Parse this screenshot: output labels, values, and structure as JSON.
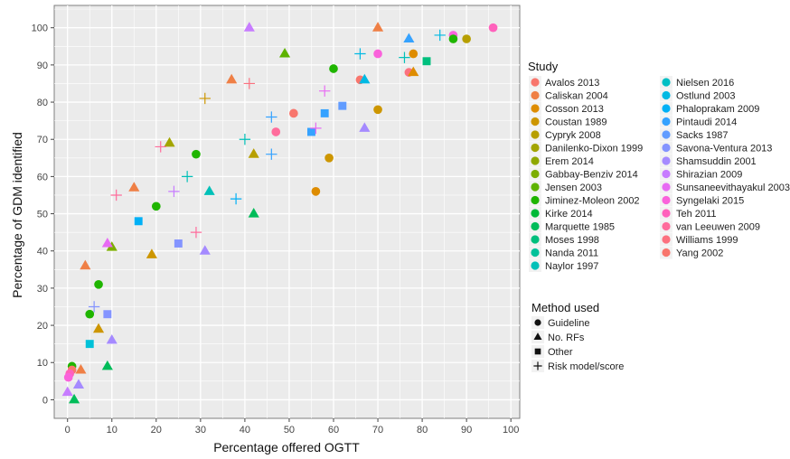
{
  "chart_data": {
    "type": "scatter",
    "title": "",
    "xlabel": "Percentage offered OGTT",
    "ylabel": "Percentage of GDM identified",
    "xlim": [
      -3,
      102
    ],
    "ylim": [
      -5,
      106
    ],
    "xticks": [
      0,
      10,
      20,
      30,
      40,
      50,
      60,
      70,
      80,
      90,
      100
    ],
    "yticks": [
      0,
      10,
      20,
      30,
      40,
      50,
      60,
      70,
      80,
      90,
      100
    ],
    "grid": true,
    "panel_background": "#ebebeb",
    "grid_color": "#ffffff",
    "legend_placement": "right",
    "legend_study_title": "Study",
    "legend_method_title": "Method used",
    "studies": [
      {
        "name": "Avalos 2013",
        "color": "#f8766d"
      },
      {
        "name": "Caliskan 2004",
        "color": "#ef7f45"
      },
      {
        "name": "Cosson 2013",
        "color": "#de8c00"
      },
      {
        "name": "Coustan 1989",
        "color": "#cd9600"
      },
      {
        "name": "Cypryk 2008",
        "color": "#b79f00"
      },
      {
        "name": "Danilenko-Dixon 1999",
        "color": "#a3a500"
      },
      {
        "name": "Erem 2014",
        "color": "#8fa800"
      },
      {
        "name": "Gabbay-Benziv 2014",
        "color": "#7cae00"
      },
      {
        "name": "Jensen 2003",
        "color": "#5eb300"
      },
      {
        "name": "Jiminez-Moleon 2002",
        "color": "#1fb500"
      },
      {
        "name": "Kirke 2014",
        "color": "#00ba38"
      },
      {
        "name": "Marquette 1985",
        "color": "#00bc59"
      },
      {
        "name": "Moses 1998",
        "color": "#00bf7d"
      },
      {
        "name": "Nanda 2011",
        "color": "#00c19a"
      },
      {
        "name": "Naylor 1997",
        "color": "#00c0b8"
      },
      {
        "name": "Nielsen 2016",
        "color": "#00bfc4"
      },
      {
        "name": "Ostlund 2003",
        "color": "#00b9e3"
      },
      {
        "name": "Phaloprakam 2009",
        "color": "#00b0f6"
      },
      {
        "name": "Pintaudi 2014",
        "color": "#35a2ff"
      },
      {
        "name": "Sacks 1987",
        "color": "#619cff"
      },
      {
        "name": "Savona-Ventura 2013",
        "color": "#8494ff"
      },
      {
        "name": "Shamsuddin 2001",
        "color": "#a58aff"
      },
      {
        "name": "Shirazian 2009",
        "color": "#c77cff"
      },
      {
        "name": "Sunsaneevithayakul 2003",
        "color": "#e76bf3"
      },
      {
        "name": "Syngelaki 2015",
        "color": "#fa62db"
      },
      {
        "name": "Teh 2011",
        "color": "#ff62bc"
      },
      {
        "name": "van Leeuwen 2009",
        "color": "#ff6c9c"
      },
      {
        "name": "Williams 1999",
        "color": "#fc717f"
      },
      {
        "name": "Yang 2002",
        "color": "#f8766d"
      }
    ],
    "methods": [
      {
        "name": "Guideline",
        "shape": "circle"
      },
      {
        "name": "No. RFs",
        "shape": "triangle"
      },
      {
        "name": "Other",
        "shape": "square"
      },
      {
        "name": "Risk model/score",
        "shape": "cross"
      }
    ],
    "points": [
      {
        "x": 87,
        "y": 98,
        "shape": "circle",
        "color": "#fa62db"
      },
      {
        "x": 96,
        "y": 100,
        "shape": "circle",
        "color": "#ff62bc"
      },
      {
        "x": 90,
        "y": 97,
        "shape": "circle",
        "color": "#b79f00"
      },
      {
        "x": 87,
        "y": 97,
        "shape": "circle",
        "color": "#1fb500"
      },
      {
        "x": 78,
        "y": 93,
        "shape": "circle",
        "color": "#de8c00"
      },
      {
        "x": 70,
        "y": 93,
        "shape": "circle",
        "color": "#fa62db"
      },
      {
        "x": 60,
        "y": 89,
        "shape": "circle",
        "color": "#1fb500"
      },
      {
        "x": 66,
        "y": 86,
        "shape": "circle",
        "color": "#f8766d"
      },
      {
        "x": 77,
        "y": 88,
        "shape": "circle",
        "color": "#fc717f"
      },
      {
        "x": 70,
        "y": 78,
        "shape": "circle",
        "color": "#cd9600"
      },
      {
        "x": 51,
        "y": 77,
        "shape": "circle",
        "color": "#f8766d"
      },
      {
        "x": 47,
        "y": 72,
        "shape": "circle",
        "color": "#ff6c9c"
      },
      {
        "x": 29,
        "y": 66,
        "shape": "circle",
        "color": "#1fb500"
      },
      {
        "x": 59,
        "y": 65,
        "shape": "circle",
        "color": "#cd9600"
      },
      {
        "x": 56,
        "y": 56,
        "shape": "circle",
        "color": "#de8c00"
      },
      {
        "x": 20,
        "y": 52,
        "shape": "circle",
        "color": "#1fb500"
      },
      {
        "x": 7,
        "y": 31,
        "shape": "circle",
        "color": "#1fb500"
      },
      {
        "x": 5,
        "y": 23,
        "shape": "circle",
        "color": "#1fb500"
      },
      {
        "x": 1,
        "y": 9,
        "shape": "circle",
        "color": "#1fb500"
      },
      {
        "x": 1,
        "y": 8,
        "shape": "circle",
        "color": "#f8766d"
      },
      {
        "x": 0.5,
        "y": 7,
        "shape": "circle",
        "color": "#ff62bc"
      },
      {
        "x": 0.2,
        "y": 6,
        "shape": "circle",
        "color": "#fa62db"
      },
      {
        "x": 70,
        "y": 100,
        "shape": "triangle",
        "color": "#ef7f45"
      },
      {
        "x": 41,
        "y": 100,
        "shape": "triangle",
        "color": "#c77cff"
      },
      {
        "x": 77,
        "y": 97,
        "shape": "triangle",
        "color": "#35a2ff"
      },
      {
        "x": 49,
        "y": 93,
        "shape": "triangle",
        "color": "#5eb300"
      },
      {
        "x": 37,
        "y": 86,
        "shape": "triangle",
        "color": "#ef7f45"
      },
      {
        "x": 78,
        "y": 88,
        "shape": "triangle",
        "color": "#de8c00"
      },
      {
        "x": 67,
        "y": 86,
        "shape": "triangle",
        "color": "#00b9e3"
      },
      {
        "x": 67,
        "y": 73,
        "shape": "triangle",
        "color": "#a58aff"
      },
      {
        "x": 23,
        "y": 69,
        "shape": "triangle",
        "color": "#a3a500"
      },
      {
        "x": 42,
        "y": 66,
        "shape": "triangle",
        "color": "#b79f00"
      },
      {
        "x": 15,
        "y": 57,
        "shape": "triangle",
        "color": "#ef7f45"
      },
      {
        "x": 32,
        "y": 56,
        "shape": "triangle",
        "color": "#00c0b8"
      },
      {
        "x": 42,
        "y": 50,
        "shape": "triangle",
        "color": "#00bc59"
      },
      {
        "x": 10,
        "y": 41,
        "shape": "triangle",
        "color": "#7cae00"
      },
      {
        "x": 9,
        "y": 42,
        "shape": "triangle",
        "color": "#e76bf3"
      },
      {
        "x": 19,
        "y": 39,
        "shape": "triangle",
        "color": "#cd9600"
      },
      {
        "x": 31,
        "y": 40,
        "shape": "triangle",
        "color": "#a58aff"
      },
      {
        "x": 4,
        "y": 36,
        "shape": "triangle",
        "color": "#ef7f45"
      },
      {
        "x": 7,
        "y": 19,
        "shape": "triangle",
        "color": "#cd9600"
      },
      {
        "x": 10,
        "y": 16,
        "shape": "triangle",
        "color": "#a58aff"
      },
      {
        "x": 9,
        "y": 9,
        "shape": "triangle",
        "color": "#00bc59"
      },
      {
        "x": 3,
        "y": 8,
        "shape": "triangle",
        "color": "#ef7f45"
      },
      {
        "x": 2.5,
        "y": 4,
        "shape": "triangle",
        "color": "#a58aff"
      },
      {
        "x": 0,
        "y": 2,
        "shape": "triangle",
        "color": "#c77cff"
      },
      {
        "x": 1.5,
        "y": 0,
        "shape": "triangle",
        "color": "#00bc59"
      },
      {
        "x": 81,
        "y": 91,
        "shape": "square",
        "color": "#00bf7d"
      },
      {
        "x": 62,
        "y": 79,
        "shape": "square",
        "color": "#619cff"
      },
      {
        "x": 58,
        "y": 77,
        "shape": "square",
        "color": "#35a2ff"
      },
      {
        "x": 55,
        "y": 72,
        "shape": "square",
        "color": "#35a2ff"
      },
      {
        "x": 16,
        "y": 48,
        "shape": "square",
        "color": "#00b0f6"
      },
      {
        "x": 25,
        "y": 42,
        "shape": "square",
        "color": "#8494ff"
      },
      {
        "x": 9,
        "y": 23,
        "shape": "square",
        "color": "#8494ff"
      },
      {
        "x": 5,
        "y": 15,
        "shape": "square",
        "color": "#00c1d8"
      },
      {
        "x": 84,
        "y": 98,
        "shape": "cross",
        "color": "#00b9e3"
      },
      {
        "x": 76,
        "y": 92,
        "shape": "cross",
        "color": "#00c0b8"
      },
      {
        "x": 66,
        "y": 93,
        "shape": "cross",
        "color": "#00b9e3"
      },
      {
        "x": 41,
        "y": 85,
        "shape": "cross",
        "color": "#fc717f"
      },
      {
        "x": 31,
        "y": 81,
        "shape": "cross",
        "color": "#cd9600"
      },
      {
        "x": 58,
        "y": 83,
        "shape": "cross",
        "color": "#e76bf3"
      },
      {
        "x": 46,
        "y": 76,
        "shape": "cross",
        "color": "#35a2ff"
      },
      {
        "x": 56,
        "y": 73,
        "shape": "cross",
        "color": "#e76bf3"
      },
      {
        "x": 40,
        "y": 70,
        "shape": "cross",
        "color": "#00c0b8"
      },
      {
        "x": 46,
        "y": 66,
        "shape": "cross",
        "color": "#35a2ff"
      },
      {
        "x": 21,
        "y": 68,
        "shape": "cross",
        "color": "#ff6c9c"
      },
      {
        "x": 27,
        "y": 60,
        "shape": "cross",
        "color": "#00c0b8"
      },
      {
        "x": 24,
        "y": 56,
        "shape": "cross",
        "color": "#c77cff"
      },
      {
        "x": 11,
        "y": 55,
        "shape": "cross",
        "color": "#ff6c9c"
      },
      {
        "x": 38,
        "y": 54,
        "shape": "cross",
        "color": "#00b0f6"
      },
      {
        "x": 29,
        "y": 45,
        "shape": "cross",
        "color": "#ff6c9c"
      },
      {
        "x": 6,
        "y": 25,
        "shape": "cross",
        "color": "#8494ff"
      }
    ]
  }
}
